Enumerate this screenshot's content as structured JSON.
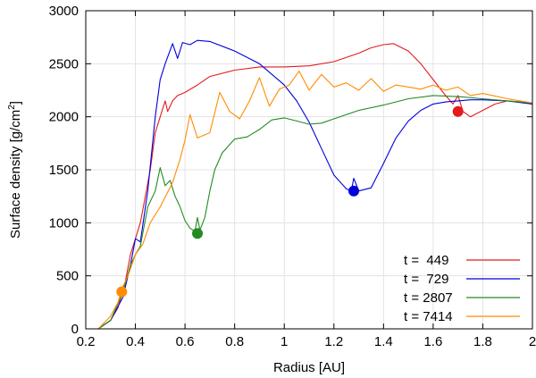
{
  "chart_data": {
    "type": "line",
    "title": "",
    "xlabel": "Radius [AU]",
    "ylabel_prefix": "Surface density [g/cm",
    "ylabel_sup": "2",
    "ylabel_suffix": "]",
    "xlim": [
      0.2,
      2.0
    ],
    "ylim": [
      0,
      3000
    ],
    "xticks": [
      0.2,
      0.4,
      0.6,
      0.8,
      1.0,
      1.2,
      1.4,
      1.6,
      1.8,
      2.0
    ],
    "xtick_labels": [
      "0.2",
      "0.4",
      "0.6",
      "0.8",
      "1",
      "1.2",
      "1.4",
      "1.6",
      "1.8",
      "2"
    ],
    "yticks": [
      0,
      500,
      1000,
      1500,
      2000,
      2500,
      3000
    ],
    "ytick_labels": [
      "0",
      "500",
      "1000",
      "1500",
      "2000",
      "2500",
      "3000"
    ],
    "grid": true,
    "legend_position": "bottom-right",
    "series": [
      {
        "name": "t =  449",
        "color": "#e41a1c",
        "x": [
          0.25,
          0.3,
          0.33,
          0.36,
          0.38,
          0.4,
          0.42,
          0.44,
          0.46,
          0.48,
          0.5,
          0.52,
          0.53,
          0.55,
          0.57,
          0.6,
          0.65,
          0.7,
          0.8,
          0.9,
          1.0,
          1.1,
          1.2,
          1.3,
          1.35,
          1.4,
          1.44,
          1.5,
          1.55,
          1.6,
          1.65,
          1.68,
          1.7,
          1.72,
          1.75,
          1.8,
          1.85,
          1.9,
          1.95,
          2.0
        ],
        "y": [
          0,
          80,
          200,
          450,
          700,
          850,
          1000,
          1250,
          1500,
          1850,
          2000,
          2150,
          2050,
          2150,
          2200,
          2230,
          2300,
          2380,
          2440,
          2470,
          2470,
          2480,
          2520,
          2600,
          2650,
          2680,
          2690,
          2620,
          2500,
          2350,
          2200,
          2120,
          2200,
          2050,
          2000,
          2060,
          2120,
          2150,
          2140,
          2120
        ],
        "marker": [
          1.7,
          2050
        ]
      },
      {
        "name": "t =  729",
        "color": "#0000dd",
        "x": [
          0.25,
          0.3,
          0.35,
          0.38,
          0.4,
          0.42,
          0.45,
          0.48,
          0.5,
          0.52,
          0.55,
          0.57,
          0.59,
          0.62,
          0.65,
          0.7,
          0.8,
          0.9,
          1.0,
          1.05,
          1.1,
          1.15,
          1.2,
          1.25,
          1.27,
          1.28,
          1.3,
          1.35,
          1.4,
          1.45,
          1.5,
          1.55,
          1.6,
          1.65,
          1.7,
          1.75,
          1.8,
          1.9,
          2.0
        ],
        "y": [
          0,
          80,
          300,
          600,
          850,
          820,
          1300,
          2000,
          2350,
          2500,
          2690,
          2550,
          2700,
          2680,
          2720,
          2710,
          2620,
          2500,
          2300,
          2150,
          1950,
          1700,
          1450,
          1320,
          1300,
          1420,
          1300,
          1330,
          1560,
          1800,
          1960,
          2060,
          2120,
          2140,
          2150,
          2160,
          2160,
          2150,
          2120
        ],
        "marker": [
          1.28,
          1300
        ]
      },
      {
        "name": "t = 2807",
        "color": "#228b22",
        "x": [
          0.25,
          0.3,
          0.35,
          0.38,
          0.4,
          0.42,
          0.45,
          0.48,
          0.5,
          0.52,
          0.54,
          0.56,
          0.58,
          0.6,
          0.62,
          0.64,
          0.65,
          0.66,
          0.68,
          0.7,
          0.72,
          0.75,
          0.8,
          0.85,
          0.9,
          0.95,
          1.0,
          1.05,
          1.1,
          1.15,
          1.2,
          1.3,
          1.4,
          1.5,
          1.6,
          1.7,
          1.8,
          1.9,
          2.0
        ],
        "y": [
          0,
          80,
          350,
          600,
          700,
          780,
          1150,
          1300,
          1520,
          1350,
          1400,
          1250,
          1150,
          1020,
          950,
          920,
          1050,
          930,
          1050,
          1300,
          1500,
          1660,
          1790,
          1810,
          1880,
          1970,
          1990,
          1960,
          1930,
          1940,
          1980,
          2060,
          2110,
          2170,
          2200,
          2190,
          2170,
          2150,
          2130
        ],
        "marker": [
          0.65,
          900
        ]
      },
      {
        "name": "t = 7414",
        "color": "#ff8c00",
        "x": [
          0.25,
          0.3,
          0.33,
          0.35,
          0.37,
          0.4,
          0.43,
          0.46,
          0.5,
          0.55,
          0.58,
          0.6,
          0.62,
          0.65,
          0.7,
          0.74,
          0.78,
          0.82,
          0.86,
          0.9,
          0.94,
          0.98,
          1.02,
          1.06,
          1.1,
          1.15,
          1.2,
          1.25,
          1.3,
          1.35,
          1.4,
          1.45,
          1.5,
          1.55,
          1.6,
          1.65,
          1.7,
          1.75,
          1.8,
          1.9,
          2.0
        ],
        "y": [
          0,
          120,
          250,
          400,
          500,
          700,
          800,
          1000,
          1150,
          1380,
          1600,
          1780,
          2020,
          1800,
          1850,
          2230,
          2050,
          1980,
          2150,
          2370,
          2100,
          2260,
          2300,
          2430,
          2250,
          2400,
          2280,
          2320,
          2250,
          2360,
          2240,
          2300,
          2280,
          2260,
          2300,
          2250,
          2280,
          2200,
          2220,
          2170,
          2130
        ],
        "marker": [
          0.345,
          350
        ]
      }
    ]
  }
}
